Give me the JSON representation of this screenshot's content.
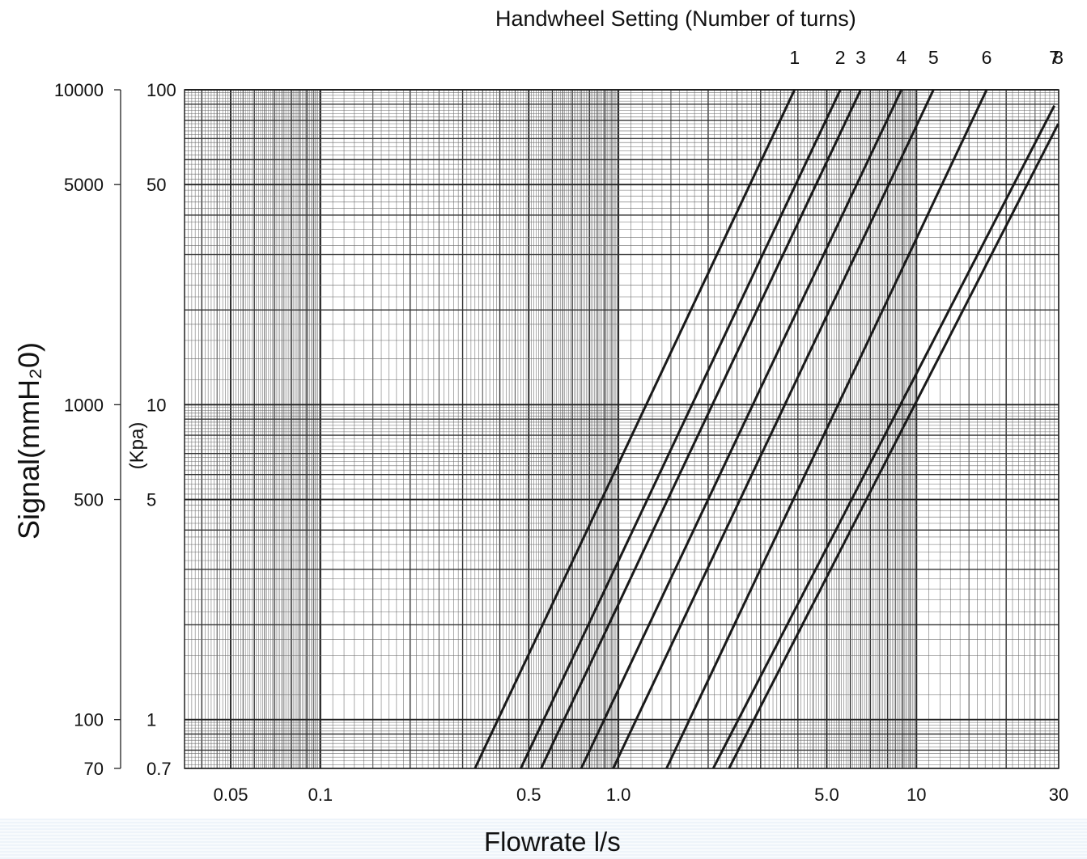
{
  "chart_data": {
    "type": "line",
    "title": "Handwheel Setting (Number of turns)",
    "xlabel": "Flowrate l/s",
    "ylabel_left": "Signal(mmH₂0)",
    "ylabel_right": "(Kpa)",
    "x_scale": "log",
    "y_scale": "log",
    "xlim": [
      0.035,
      30
    ],
    "ylim_kpa": [
      0.7,
      100
    ],
    "ylim_mmh2o": [
      70,
      10000
    ],
    "grid": true,
    "x_ticks": [
      {
        "value": 0.05,
        "label": "0.05"
      },
      {
        "value": 0.1,
        "label": "0.1"
      },
      {
        "value": 0.5,
        "label": "0.5"
      },
      {
        "value": 1.0,
        "label": "1.0"
      },
      {
        "value": 5.0,
        "label": "5.0"
      },
      {
        "value": 10,
        "label": "10"
      },
      {
        "value": 30,
        "label": "30"
      }
    ],
    "y_ticks_mmh2o": [
      {
        "value": 10000,
        "label": "10000"
      },
      {
        "value": 5000,
        "label": "5000"
      },
      {
        "value": 1000,
        "label": "1000"
      },
      {
        "value": 500,
        "label": "500"
      },
      {
        "value": 100,
        "label": "100"
      },
      {
        "value": 70,
        "label": "70"
      }
    ],
    "y_ticks_kpa": [
      {
        "value": 100,
        "label": "100"
      },
      {
        "value": 50,
        "label": "50"
      },
      {
        "value": 10,
        "label": "10"
      },
      {
        "value": 5,
        "label": "5"
      },
      {
        "value": 1,
        "label": "1"
      },
      {
        "value": 0.7,
        "label": "0.7"
      }
    ],
    "series": [
      {
        "name": "1",
        "x": [
          0.33,
          3.9
        ],
        "y": [
          0.7,
          100
        ]
      },
      {
        "name": "2",
        "x": [
          0.47,
          5.55
        ],
        "y": [
          0.7,
          100
        ]
      },
      {
        "name": "3",
        "x": [
          0.55,
          6.5
        ],
        "y": [
          0.7,
          100
        ]
      },
      {
        "name": "4",
        "x": [
          0.75,
          8.9
        ],
        "y": [
          0.7,
          100
        ]
      },
      {
        "name": "5",
        "x": [
          0.96,
          11.4
        ],
        "y": [
          0.7,
          100
        ]
      },
      {
        "name": "6",
        "x": [
          1.45,
          17.2
        ],
        "y": [
          0.7,
          100
        ]
      },
      {
        "name": "7",
        "x": [
          2.08,
          29.0
        ],
        "y": [
          0.7,
          89
        ]
      },
      {
        "name": "8",
        "x": [
          2.35,
          29.9
        ],
        "y": [
          0.7,
          78
        ]
      }
    ]
  }
}
